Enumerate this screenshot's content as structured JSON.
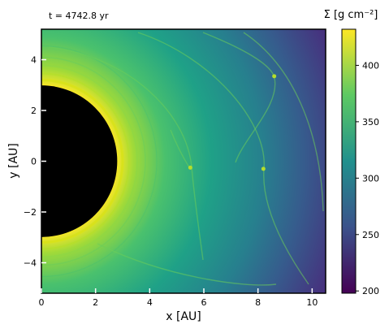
{
  "chart_data": {
    "type": "heatmap",
    "title": "t =  4742.8 yr",
    "xlabel": "x [AU]",
    "ylabel": "y [AU]",
    "xlim": [
      0,
      10.5
    ],
    "ylim": [
      -5.2,
      5.2
    ],
    "x_ticks": [
      0,
      2,
      4,
      6,
      8,
      10
    ],
    "y_ticks": [
      -4,
      -2,
      0,
      2,
      4
    ],
    "colorbar": {
      "label": "Σ [g cm⁻²]",
      "range": [
        198,
        432
      ],
      "ticks": [
        200,
        250,
        300,
        350,
        400
      ],
      "colormap": "viridis"
    },
    "features": {
      "central_hole_radius_au": 2.8,
      "planets": [
        {
          "x": 5.5,
          "y": -0.25
        },
        {
          "x": 8.2,
          "y": -0.3
        },
        {
          "x": 8.6,
          "y": 3.35
        }
      ]
    },
    "grid": false
  },
  "colors": {
    "hole": "#000000",
    "viridis": [
      "#440154",
      "#3b528b",
      "#21908d",
      "#5dc963",
      "#fde725"
    ]
  }
}
